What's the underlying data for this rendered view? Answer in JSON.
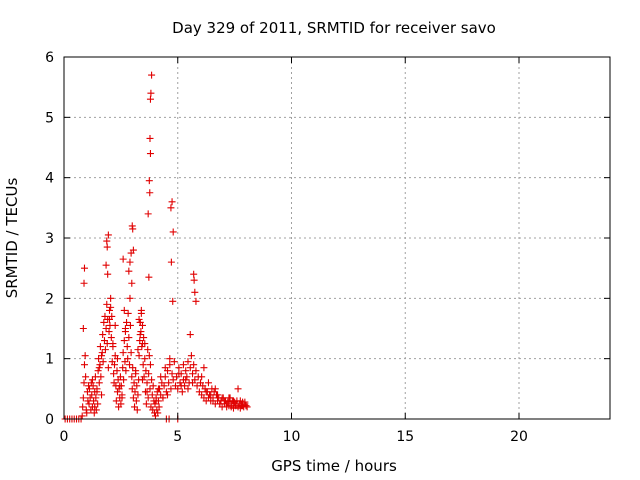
{
  "chart_data": {
    "type": "scatter",
    "title": "Day 329 of 2011, SRMTID for receiver savo",
    "xlabel": "GPS time / hours",
    "ylabel": "SRMTID / TECUs",
    "xlim": [
      0,
      24
    ],
    "ylim": [
      0,
      6
    ],
    "xticks": [
      0,
      5,
      10,
      15,
      20
    ],
    "yticks": [
      0,
      1,
      2,
      3,
      4,
      5,
      6
    ],
    "grid": true,
    "marker": "+",
    "marker_color": "#e00000",
    "series": [
      {
        "name": "SRMTID",
        "x": [
          0.05,
          0.15,
          0.25,
          0.35,
          0.45,
          0.55,
          0.65,
          0.75,
          0.8,
          0.82,
          0.85,
          0.88,
          0.9,
          0.93,
          0.95,
          0.98,
          1.0,
          1.03,
          1.05,
          1.08,
          1.1,
          1.12,
          1.15,
          1.18,
          1.2,
          1.22,
          1.25,
          1.28,
          1.3,
          1.33,
          1.35,
          1.38,
          1.4,
          1.42,
          1.45,
          1.48,
          1.5,
          1.52,
          1.55,
          1.58,
          1.6,
          1.62,
          1.65,
          1.68,
          1.7,
          1.72,
          1.75,
          1.78,
          1.8,
          1.82,
          1.85,
          1.88,
          1.9,
          1.92,
          1.95,
          1.98,
          2.0,
          2.02,
          2.05,
          2.08,
          2.1,
          2.12,
          2.15,
          2.18,
          2.2,
          2.22,
          2.25,
          2.28,
          2.3,
          2.33,
          2.35,
          2.38,
          2.4,
          2.42,
          2.45,
          2.48,
          2.5,
          2.52,
          2.55,
          2.58,
          2.6,
          2.62,
          2.65,
          2.68,
          2.7,
          2.72,
          2.75,
          2.78,
          2.8,
          2.82,
          2.85,
          2.88,
          2.9,
          2.92,
          2.95,
          2.98,
          3.0,
          3.02,
          3.05,
          3.08,
          3.1,
          3.12,
          3.15,
          3.18,
          3.2,
          3.22,
          3.25,
          3.28,
          3.3,
          3.33,
          3.35,
          3.38,
          3.4,
          3.42,
          3.45,
          3.48,
          3.5,
          3.52,
          3.55,
          3.58,
          3.6,
          3.62,
          3.65,
          3.68,
          3.7,
          3.72,
          3.75,
          3.78,
          3.8,
          3.82,
          3.85,
          3.88,
          3.9,
          3.92,
          3.95,
          3.98,
          4.0,
          4.02,
          4.05,
          4.08,
          4.1,
          4.12,
          4.15,
          4.18,
          4.2,
          4.25,
          4.3,
          4.35,
          4.4,
          4.45,
          4.5,
          4.55,
          4.6,
          4.65,
          4.7,
          4.75,
          4.8,
          4.85,
          4.9,
          4.95,
          5.0,
          5.05,
          5.1,
          5.15,
          5.2,
          5.25,
          5.3,
          5.35,
          5.4,
          5.45,
          5.5,
          5.55,
          5.6,
          5.65,
          5.7,
          5.75,
          5.8,
          5.85,
          5.9,
          5.95,
          6.0,
          6.05,
          6.1,
          6.15,
          6.2,
          6.25,
          6.3,
          6.35,
          6.4,
          6.45,
          6.5,
          6.55,
          6.6,
          6.65,
          6.7,
          6.75,
          6.8,
          6.85,
          6.9,
          6.95,
          7.0,
          7.05,
          7.1,
          7.15,
          7.2,
          7.25,
          7.3,
          7.35,
          7.4,
          7.45,
          7.5,
          7.55,
          7.6,
          7.65,
          7.7,
          7.75,
          7.8,
          7.85,
          7.9,
          7.95,
          8.0,
          8.05,
          0.85,
          0.88,
          0.9,
          1.85,
          1.9,
          1.95,
          2.0,
          2.05,
          1.88,
          1.92,
          2.85,
          2.9,
          2.95,
          3.0,
          3.05,
          3.02,
          2.98,
          3.7,
          3.75,
          3.78,
          3.8,
          3.82,
          3.85,
          3.8,
          3.77,
          3.73,
          4.7,
          4.75,
          4.8,
          4.72,
          4.78,
          5.7,
          5.75,
          5.8,
          5.72,
          2.6,
          2.65,
          2.7,
          3.3,
          3.35,
          3.4,
          3.45,
          1.25,
          1.35,
          1.45,
          1.55,
          1.65,
          2.15,
          2.25,
          2.35,
          2.45,
          2.55,
          3.15,
          3.25,
          3.35,
          3.45,
          3.55,
          3.65,
          4.05,
          4.15,
          4.25,
          4.35,
          4.45,
          4.55,
          4.65,
          5.05,
          5.15,
          5.25,
          5.35,
          5.45,
          5.55,
          5.65,
          6.05,
          6.15,
          6.25,
          6.35,
          6.45,
          6.55,
          6.65,
          6.75,
          6.85,
          6.95,
          7.05,
          7.15,
          7.25,
          7.35,
          7.45,
          7.55,
          7.65,
          7.75,
          7.85,
          7.95,
          4.5,
          4.62,
          5.0
        ],
        "y": [
          0.0,
          0.0,
          0.0,
          0.0,
          0.0,
          0.0,
          0.0,
          0.0,
          0.05,
          0.2,
          0.35,
          0.6,
          0.9,
          1.05,
          0.7,
          0.15,
          0.1,
          0.45,
          0.3,
          0.55,
          0.25,
          0.5,
          0.35,
          0.15,
          0.6,
          0.4,
          0.2,
          0.55,
          0.3,
          0.1,
          0.45,
          0.7,
          0.35,
          0.15,
          0.5,
          0.25,
          0.8,
          1.0,
          0.6,
          0.9,
          1.2,
          0.7,
          0.4,
          1.1,
          1.4,
          0.95,
          1.6,
          1.3,
          1.7,
          1.15,
          1.5,
          1.9,
          1.25,
          1.65,
          0.85,
          1.45,
          1.8,
          1.55,
          2.0,
          1.35,
          1.7,
          0.95,
          1.2,
          0.75,
          0.6,
          0.9,
          1.05,
          0.55,
          0.3,
          0.8,
          0.45,
          0.65,
          0.2,
          0.5,
          0.35,
          0.7,
          0.25,
          0.55,
          0.4,
          0.85,
          1.1,
          0.65,
          1.3,
          0.95,
          1.45,
          0.8,
          1.6,
          1.2,
          1.0,
          1.75,
          1.35,
          0.9,
          2.0,
          1.55,
          1.1,
          0.7,
          0.5,
          0.85,
          0.35,
          0.6,
          0.2,
          0.45,
          0.75,
          0.3,
          0.55,
          0.15,
          0.4,
          0.65,
          1.05,
          1.3,
          1.6,
          1.45,
          1.75,
          1.2,
          1.55,
          0.9,
          1.35,
          0.7,
          1.0,
          0.45,
          0.8,
          0.25,
          0.6,
          1.15,
          0.35,
          0.75,
          1.05,
          0.5,
          0.9,
          0.2,
          0.65,
          0.4,
          0.15,
          0.55,
          0.3,
          0.1,
          0.25,
          0.05,
          0.35,
          0.15,
          0.45,
          0.1,
          0.3,
          0.2,
          0.5,
          0.4,
          0.6,
          0.35,
          0.55,
          0.7,
          0.45,
          0.8,
          0.6,
          0.9,
          0.5,
          0.75,
          0.65,
          0.95,
          0.55,
          0.7,
          0.5,
          0.85,
          0.6,
          0.75,
          0.45,
          0.65,
          0.55,
          0.8,
          0.7,
          0.95,
          0.6,
          0.85,
          1.05,
          0.75,
          0.9,
          0.65,
          0.8,
          0.55,
          0.7,
          0.45,
          0.6,
          0.4,
          0.55,
          0.35,
          0.5,
          0.3,
          0.45,
          0.35,
          0.4,
          0.3,
          0.5,
          0.35,
          0.45,
          0.25,
          0.4,
          0.3,
          0.35,
          0.25,
          0.3,
          0.2,
          0.35,
          0.25,
          0.3,
          0.2,
          0.28,
          0.22,
          0.35,
          0.25,
          0.3,
          0.18,
          0.28,
          0.22,
          0.3,
          0.2,
          0.25,
          0.18,
          0.22,
          0.28,
          0.2,
          0.25,
          0.22,
          0.2,
          1.5,
          2.25,
          2.5,
          2.55,
          2.85,
          3.05,
          1.65,
          1.85,
          2.95,
          2.4,
          2.45,
          2.6,
          2.75,
          3.2,
          2.8,
          3.15,
          2.25,
          3.4,
          3.95,
          4.65,
          5.3,
          5.4,
          5.7,
          4.4,
          3.75,
          2.35,
          3.5,
          3.6,
          3.1,
          2.6,
          1.95,
          2.4,
          2.1,
          1.95,
          2.3,
          2.65,
          1.8,
          1.5,
          1.65,
          1.4,
          1.8,
          1.25,
          0.65,
          0.2,
          0.45,
          0.85,
          1.05,
          1.25,
          1.55,
          1.0,
          0.55,
          0.35,
          0.8,
          1.15,
          1.6,
          0.65,
          1.25,
          0.45,
          0.3,
          0.5,
          0.7,
          0.35,
          0.85,
          0.4,
          1.0,
          0.75,
          0.55,
          0.9,
          0.65,
          0.5,
          1.4,
          0.6,
          0.7,
          0.85,
          0.45,
          0.6,
          0.4,
          0.3,
          0.5,
          0.4,
          0.25,
          0.35,
          0.3,
          0.25,
          0.35,
          0.2,
          0.3,
          0.25,
          0.5,
          0.3,
          0.22,
          0.28,
          0.0,
          0.0,
          0.0
        ]
      }
    ]
  }
}
